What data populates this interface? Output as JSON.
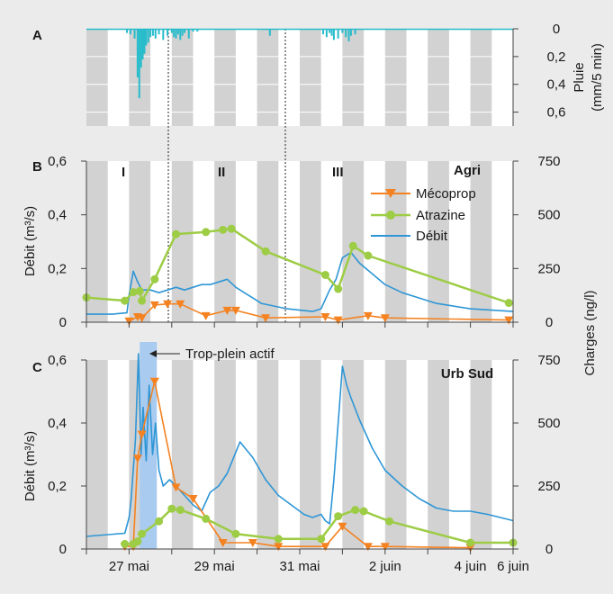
{
  "colors": {
    "background": "#ebebeb",
    "plot_bg": "#ffffff",
    "night_band": "#d2d2d2",
    "rain": "#27bccb",
    "mecoprop": "#f48221",
    "atrazine": "#9dcc45",
    "debit": "#2e96d6",
    "overflow": "#a9cbef",
    "axis": "#444444"
  },
  "x_ticks": [
    "27 mai",
    "29 mai",
    "31 mai",
    "2 juin",
    "4 juin",
    "6 juin"
  ],
  "panel_a": {
    "letter": "A",
    "ylabel_line1": "Pluie",
    "ylabel_line2": "(mm/5 min)",
    "yticks": [
      "0",
      "0,2",
      "0,4",
      "0,6"
    ]
  },
  "panel_b": {
    "letter": "B",
    "title": "Agri",
    "periods": [
      "I",
      "II",
      "III"
    ],
    "ylabel_left": "Débit (m³/s)",
    "yticks_left": [
      "0",
      "0,2",
      "0,4",
      "0,6"
    ],
    "yticks_right": [
      "0",
      "250",
      "500",
      "750"
    ],
    "legend": [
      "Mécoprop",
      "Atrazine",
      "Débit"
    ]
  },
  "panel_c": {
    "letter": "C",
    "title": "Urb Sud",
    "annotation": "Trop-plein actif",
    "ylabel_left": "Débit (m³/s)",
    "yticks_left": [
      "0",
      "0,2",
      "0,4",
      "0,6"
    ],
    "yticks_right": [
      "0",
      "250",
      "500",
      "750"
    ]
  },
  "ylabel_right": "Charges (ng/l)",
  "chart_data": [
    {
      "type": "bar",
      "panel": "A",
      "title": "",
      "ylabel": "Pluie (mm/5 min)",
      "ylim": [
        0.7,
        0
      ],
      "series": [
        {
          "name": "Pluie",
          "x": [
            26.95,
            27.03,
            27.13,
            27.2,
            27.24,
            27.28,
            27.32,
            27.36,
            27.4,
            27.45,
            27.5,
            27.56,
            27.62,
            27.7,
            27.8,
            27.9,
            28.0,
            28.05,
            28.1,
            28.15,
            28.2,
            28.25,
            28.3,
            28.4,
            28.5,
            28.6,
            30.3,
            31.55,
            31.63,
            31.7,
            31.75,
            31.8,
            31.9,
            32.0,
            32.08,
            32.15,
            32.2,
            32.3
          ],
          "values": [
            0.03,
            0.04,
            0.07,
            0.35,
            0.5,
            0.28,
            0.22,
            0.18,
            0.12,
            0.1,
            0.06,
            0.05,
            0.07,
            0.04,
            0.08,
            0.05,
            0.03,
            0.06,
            0.07,
            0.04,
            0.08,
            0.05,
            0.03,
            0.07,
            0.02,
            0.02,
            0.05,
            0.04,
            0.06,
            0.03,
            0.05,
            0.08,
            0.07,
            0.03,
            0.06,
            0.09,
            0.05,
            0.04
          ]
        }
      ]
    },
    {
      "type": "line",
      "panel": "B",
      "title": "Agri",
      "ylabel": "Débit (m³/s)",
      "ylabel_right": "Charges (ng/l)",
      "ylim": [
        0,
        0.6
      ],
      "ylim_right": [
        0,
        750
      ],
      "x_labels": [
        "27 mai",
        "29 mai",
        "31 mai",
        "2 juin",
        "4 juin",
        "6 juin"
      ],
      "series": [
        {
          "name": "Débit",
          "axis": "left",
          "x": [
            26.0,
            26.6,
            26.95,
            27.0,
            27.1,
            27.2,
            27.3,
            27.5,
            27.7,
            27.9,
            28.1,
            28.3,
            28.5,
            28.7,
            28.9,
            29.1,
            29.3,
            29.5,
            29.7,
            29.9,
            30.1,
            30.4,
            30.7,
            31.0,
            31.3,
            31.5,
            31.7,
            31.85,
            32.0,
            32.2,
            32.4,
            32.7,
            33.0,
            33.4,
            33.8,
            34.2,
            34.6,
            35.0,
            35.5,
            36.0
          ],
          "values": [
            0.03,
            0.03,
            0.035,
            0.1,
            0.19,
            0.15,
            0.12,
            0.12,
            0.11,
            0.12,
            0.13,
            0.12,
            0.13,
            0.14,
            0.14,
            0.15,
            0.16,
            0.13,
            0.11,
            0.09,
            0.07,
            0.06,
            0.05,
            0.045,
            0.04,
            0.05,
            0.12,
            0.16,
            0.24,
            0.26,
            0.22,
            0.18,
            0.14,
            0.11,
            0.09,
            0.07,
            0.06,
            0.05,
            0.045,
            0.04
          ]
        },
        {
          "name": "Mécoprop",
          "axis": "right",
          "x": [
            27.0,
            27.2,
            27.3,
            27.6,
            27.9,
            28.2,
            28.8,
            29.3,
            29.5,
            30.2,
            31.6,
            31.9,
            32.6,
            33.0,
            35.9
          ],
          "values": [
            5,
            25,
            20,
            80,
            85,
            85,
            30,
            55,
            55,
            20,
            25,
            10,
            30,
            20,
            10
          ]
        },
        {
          "name": "Atrazine",
          "axis": "right",
          "x": [
            26.0,
            26.9,
            27.1,
            27.25,
            27.3,
            27.6,
            28.1,
            28.8,
            29.2,
            29.4,
            30.2,
            31.6,
            31.9,
            32.25,
            32.6,
            35.9
          ],
          "values": [
            115,
            100,
            140,
            145,
            100,
            200,
            410,
            420,
            430,
            435,
            330,
            220,
            155,
            355,
            310,
            90
          ]
        }
      ]
    },
    {
      "type": "line",
      "panel": "C",
      "title": "Urb Sud",
      "ylabel": "Débit (m³/s)",
      "ylabel_right": "Charges (ng/l)",
      "ylim": [
        0,
        0.6
      ],
      "ylim_right": [
        0,
        750
      ],
      "x_labels": [
        "27 mai",
        "29 mai",
        "31 mai",
        "2 juin",
        "4 juin",
        "6 juin"
      ],
      "overflow_period": [
        27.25,
        27.65
      ],
      "series": [
        {
          "name": "Débit",
          "axis": "left",
          "x": [
            26.0,
            26.9,
            27.0,
            27.05,
            27.15,
            27.22,
            27.28,
            27.33,
            27.4,
            27.47,
            27.55,
            27.62,
            27.7,
            27.8,
            27.95,
            28.1,
            28.3,
            28.5,
            28.7,
            28.9,
            29.1,
            29.3,
            29.6,
            29.9,
            30.2,
            30.5,
            30.8,
            31.1,
            31.3,
            31.5,
            31.6,
            31.7,
            31.8,
            31.9,
            32.0,
            32.1,
            32.2,
            32.4,
            32.7,
            33.0,
            33.4,
            33.8,
            34.2,
            34.6,
            35.0,
            35.4,
            35.7,
            36.0
          ],
          "values": [
            0.04,
            0.05,
            0.1,
            0.16,
            0.35,
            0.62,
            0.3,
            0.45,
            0.28,
            0.52,
            0.3,
            0.4,
            0.25,
            0.2,
            0.22,
            0.2,
            0.17,
            0.14,
            0.12,
            0.18,
            0.2,
            0.24,
            0.34,
            0.29,
            0.22,
            0.17,
            0.14,
            0.11,
            0.1,
            0.11,
            0.09,
            0.08,
            0.22,
            0.4,
            0.58,
            0.52,
            0.48,
            0.41,
            0.32,
            0.25,
            0.2,
            0.16,
            0.13,
            0.12,
            0.12,
            0.11,
            0.1,
            0.09
          ]
        },
        {
          "name": "Mécoprop",
          "axis": "right",
          "x": [
            26.9,
            27.1,
            27.2,
            27.3,
            27.6,
            28.1,
            28.5,
            29.2,
            29.9,
            30.5,
            31.6,
            32.0,
            32.6,
            33.0,
            35.0
          ],
          "values": [
            10,
            10,
            360,
            455,
            665,
            245,
            200,
            25,
            25,
            10,
            10,
            90,
            10,
            10,
            5
          ]
        },
        {
          "name": "Atrazine",
          "axis": "right",
          "x": [
            26.9,
            27.1,
            27.2,
            27.3,
            27.7,
            28.0,
            28.2,
            28.8,
            29.5,
            30.5,
            31.5,
            31.9,
            32.3,
            32.5,
            33.1,
            35.0,
            36.0
          ],
          "values": [
            20,
            20,
            30,
            60,
            110,
            160,
            155,
            120,
            60,
            40,
            40,
            130,
            155,
            150,
            110,
            25,
            25
          ]
        }
      ]
    }
  ]
}
